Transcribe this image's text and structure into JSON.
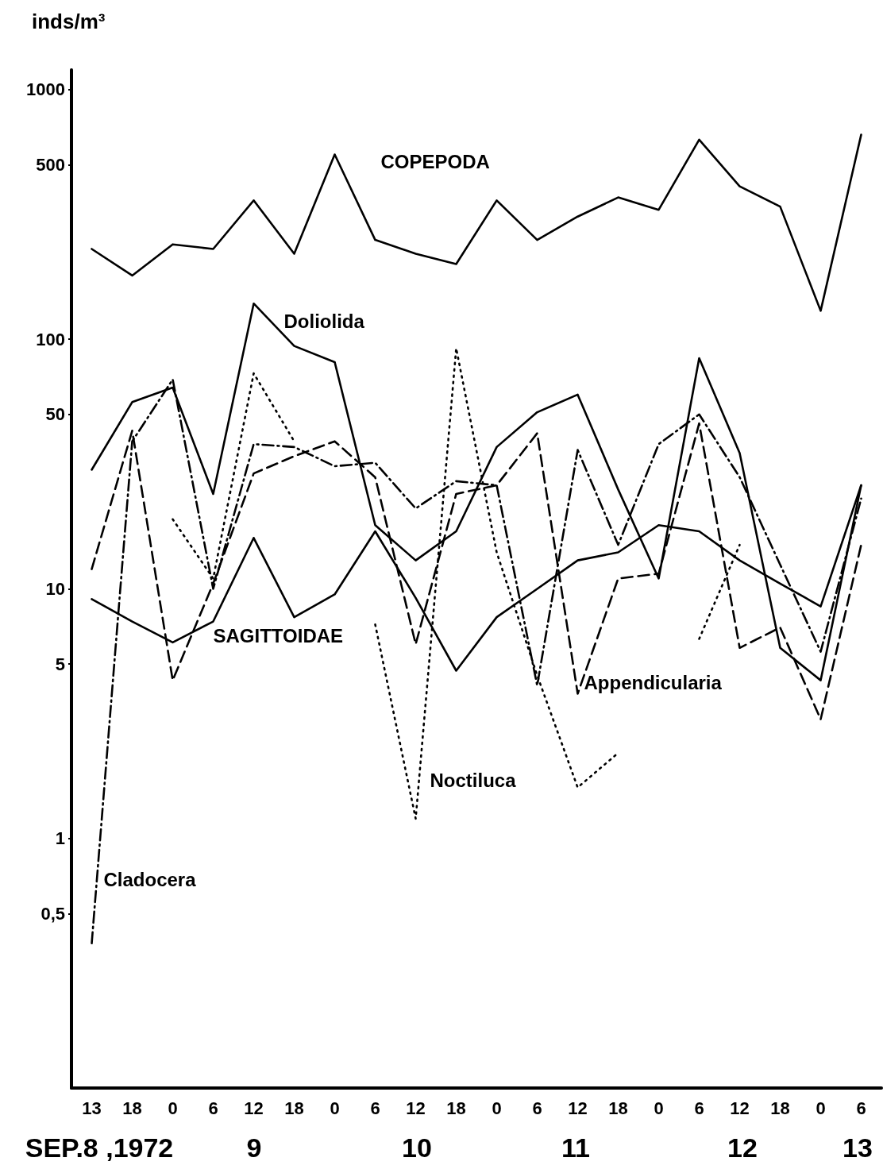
{
  "chart_data": {
    "type": "line",
    "ylabel": "inds/m³",
    "log": true,
    "grid": false,
    "legend": false,
    "marker": "none",
    "categories": [
      "13",
      "18",
      "0",
      "6",
      "12",
      "18",
      "0",
      "6",
      "12",
      "18",
      "0",
      "6",
      "12",
      "18",
      "0",
      "6",
      "12",
      "18",
      "0",
      "6"
    ],
    "ylim": [
      0.1,
      1200
    ],
    "yticks": [
      {
        "value": 0.5,
        "label": "0,5"
      },
      1,
      5,
      10,
      50,
      100,
      500,
      1000
    ],
    "series": [
      {
        "name": "COPEPODA",
        "color": "#000000",
        "line_style": "solid",
        "values": [
          230,
          180,
          240,
          230,
          360,
          220,
          550,
          250,
          220,
          200,
          360,
          250,
          310,
          370,
          330,
          630,
          410,
          340,
          130,
          660
        ]
      },
      {
        "name": "Doliolida",
        "color": "#000000",
        "line_style": "solid",
        "values": [
          30,
          56,
          64,
          24,
          139,
          94,
          81,
          18,
          13,
          17,
          37,
          51,
          60,
          25,
          11,
          84,
          35,
          5.8,
          4.3,
          26
        ]
      },
      {
        "name": "SAGITTOIDAE",
        "color": "#000000",
        "line_style": "solid",
        "values": [
          9.1,
          7.4,
          6.1,
          7.4,
          16,
          7.7,
          9.5,
          17,
          9.2,
          4.7,
          7.7,
          10,
          13,
          14,
          18,
          17,
          13,
          10.5,
          8.5,
          26
        ]
      },
      {
        "name": "Appendicularia",
        "color": "#000000",
        "line_style": "dashed",
        "values": [
          12,
          43,
          4.3,
          10.5,
          29,
          34,
          39,
          28,
          6,
          24,
          26,
          42,
          3.8,
          11,
          11.5,
          46,
          5.8,
          7,
          3,
          15
        ]
      },
      {
        "name": "Noctiluca",
        "color": "#000000",
        "line_style": "dotted",
        "values": [
          null,
          null,
          19,
          11,
          73,
          39,
          null,
          7.2,
          1.2,
          92,
          14,
          4.5,
          1.6,
          2.2,
          null,
          6.3,
          15,
          null,
          null,
          null
        ]
      },
      {
        "name": "Cladocera",
        "color": "#000000",
        "line_style": "dashdot",
        "values": [
          0.38,
          39,
          69,
          10,
          38,
          37,
          31,
          32,
          21,
          27,
          26,
          4.1,
          36,
          15,
          38,
          50,
          28,
          12.5,
          5.6,
          23
        ]
      }
    ],
    "annotations": [
      "SEP.8 ,1972",
      "9",
      "10",
      "11",
      "12",
      "13"
    ]
  }
}
